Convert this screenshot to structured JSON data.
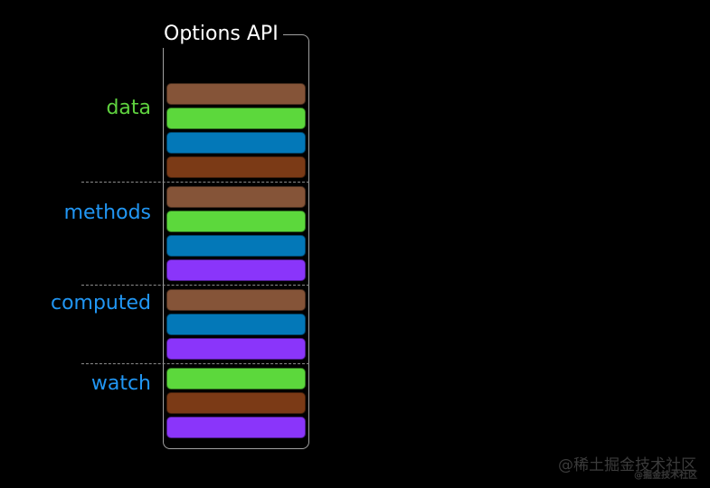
{
  "title": "Options API",
  "colors": {
    "background": "#000000",
    "box_border": "#a0a0a0",
    "divider_dash": "#8b8b8b",
    "title_text": "#ffffff",
    "label_green": "#5fd23f",
    "label_blue": "#2196f3",
    "bar_light_brown": "#855438",
    "bar_green": "#5cd83c",
    "bar_blue": "#0378b8",
    "bar_dark_brown": "#7b3a16",
    "bar_purple": "#8a35fa",
    "watermark_text": "#3b3b3b"
  },
  "sections": [
    {
      "label": "data",
      "label_color": "#5fd23f",
      "bars": [
        "#855438",
        "#5cd83c",
        "#0378b8",
        "#7b3a16"
      ]
    },
    {
      "label": "methods",
      "label_color": "#2196f3",
      "bars": [
        "#855438",
        "#5cd83c",
        "#0378b8",
        "#8a35fa"
      ]
    },
    {
      "label": "computed",
      "label_color": "#2196f3",
      "bars": [
        "#855438",
        "#0378b8",
        "#8a35fa"
      ]
    },
    {
      "label": "watch",
      "label_color": "#2196f3",
      "bars": [
        "#5cd83c",
        "#7b3a16",
        "#8a35fa"
      ]
    }
  ],
  "watermark": {
    "primary": "@稀土掘金技术社区",
    "secondary": "@掘金技术社区"
  }
}
